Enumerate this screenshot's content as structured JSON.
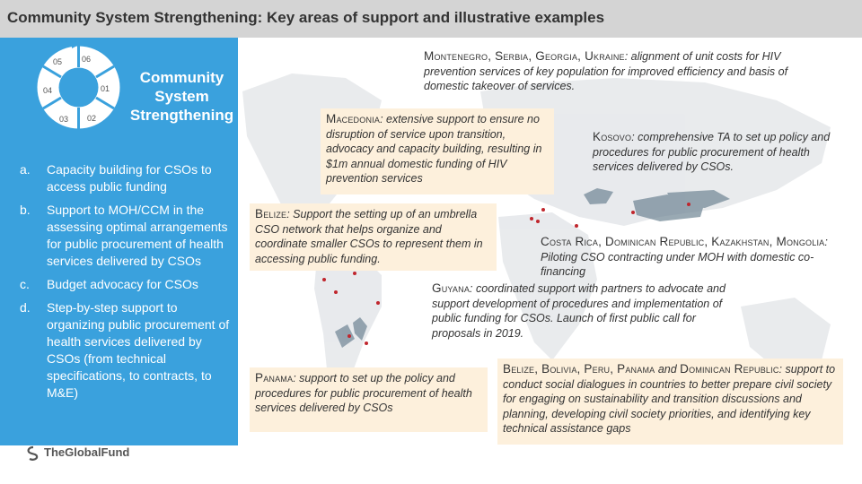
{
  "header": {
    "title": "Community System Strengthening: Key areas of support and illustrative examples"
  },
  "wheel": {
    "segments": [
      "01",
      "02",
      "03",
      "04",
      "05",
      "06"
    ],
    "center_title": "Community System Strengthening"
  },
  "support_areas": [
    {
      "letter": "a.",
      "text": "Capacity building for CSOs to access public funding"
    },
    {
      "letter": "b.",
      "text": "Support to MOH/CCM in the assessing optimal arrangements for public procurement of health services delivered by CSOs"
    },
    {
      "letter": "c.",
      "text": "Budget advocacy for CSOs"
    },
    {
      "letter": "d.",
      "text": "Step-by-step support to organizing public procurement of health services delivered by CSOs (from technical specifications, to contracts, to M&E)"
    }
  ],
  "notes": {
    "montenegro": {
      "countries": "Montenegro, Serbia, Georgia, Ukraine",
      "text": ": alignment of unit costs for HIV prevention services of key population for improved efficiency and basis of domestic takeover of services."
    },
    "macedonia": {
      "countries": "Macedonia",
      "text": ": extensive support to ensure no disruption of service upon transition, advocacy and capacity building, resulting in $1m annual domestic funding of HIV prevention services"
    },
    "kosovo": {
      "countries": "Kosovo",
      "text": ": comprehensive TA to set up policy and procedures for public procurement of health services delivered by CSOs."
    },
    "belize": {
      "countries": "Belize",
      "text": ": Support the setting up of an umbrella CSO network that helps organize and coordinate smaller CSOs to represent them in accessing public funding."
    },
    "costa_rica": {
      "countries": "Costa Rica, Dominican Republic, Kazakhstan, Mongolia",
      "text": ": Piloting CSO contracting under MOH with domestic co-financing"
    },
    "guyana": {
      "countries": "Guyana",
      "text": ": coordinated support with partners to advocate and support development of procedures and implementation of public funding for CSOs. Launch of first public call for proposals in 2019."
    },
    "panama": {
      "countries": "Panama",
      "text": ": support to set up the policy and procedures for public procurement of health services delivered by CSOs"
    },
    "belize_bolivia": {
      "countries": "Belize, Bolivia, Peru, Panama",
      "joiner": " and ",
      "countries2": "Dominican Republic",
      "text": ": support to conduct social dialogues in countries to better prepare civil society for engaging on sustainability and transition discussions and planning, developing civil society priorities, and identifying key technical assistance gaps"
    }
  },
  "logo": {
    "text": "TheGlobalFund"
  },
  "colors": {
    "panel": "#3aa1dd",
    "header": "#d4d4d4",
    "note_box": "#fdf0dc",
    "marker": "#c0262d",
    "map_land": "#d9dde1"
  }
}
